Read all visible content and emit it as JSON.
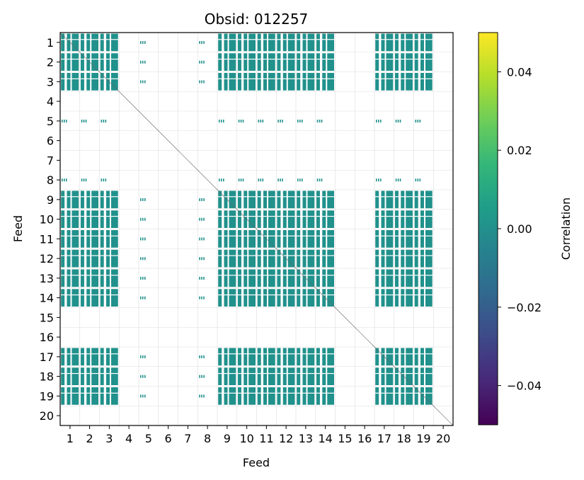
{
  "chart_data": {
    "type": "heatmap",
    "title": "Obsid: 012257",
    "xlabel": "Feed",
    "ylabel": "Feed",
    "feeds": [
      1,
      2,
      3,
      4,
      5,
      6,
      7,
      8,
      9,
      10,
      11,
      12,
      13,
      14,
      15,
      16,
      17,
      18,
      19,
      20
    ],
    "group_a_feeds": [
      1,
      2,
      3,
      9,
      10,
      11,
      12,
      13,
      14,
      17,
      18,
      19
    ],
    "group_b_feeds": [
      5,
      8
    ],
    "fill_value": 0.0,
    "fill_color": "#21918c",
    "grid": true,
    "colorbar": {
      "label": "Correlation",
      "vmin": -0.05,
      "vmax": 0.05,
      "ticks": [
        -0.04,
        -0.02,
        0.0,
        0.02,
        0.04
      ],
      "tick_labels": [
        "−0.04",
        "−0.02",
        "0.00",
        "0.02",
        "0.04"
      ],
      "colormap_stops": [
        "#440154",
        "#482878",
        "#3e4989",
        "#31688e",
        "#26828e",
        "#1f9e89",
        "#35b779",
        "#6ece58",
        "#b5de2b",
        "#fde725"
      ]
    }
  }
}
